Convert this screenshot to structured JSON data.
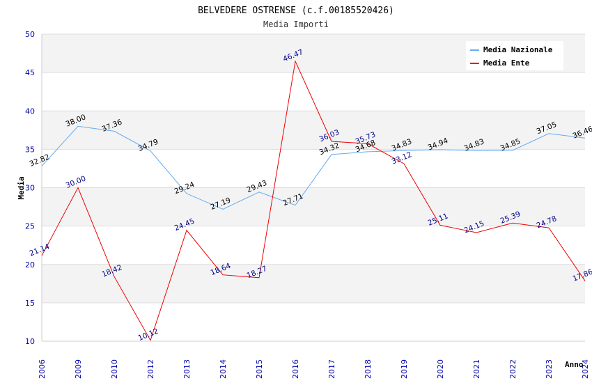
{
  "chart_data": {
    "type": "line",
    "title": "BELVEDERE OSTRENSE (c.f.00185520426)",
    "subtitle": "Media Importi",
    "xlabel": "Anno",
    "ylabel": "Media",
    "ylim": [
      10,
      50
    ],
    "yticks": [
      10,
      15,
      20,
      25,
      30,
      35,
      40,
      45,
      50
    ],
    "categories": [
      "2006",
      "2009",
      "2010",
      "2012",
      "2013",
      "2014",
      "2015",
      "2016",
      "2017",
      "2018",
      "2019",
      "2020",
      "2021",
      "2022",
      "2023",
      "2024"
    ],
    "series": [
      {
        "name": "Media Nazionale",
        "color": "#66aaee",
        "label_color": "#000000",
        "values": [
          32.82,
          38.0,
          37.36,
          34.79,
          29.24,
          27.19,
          29.43,
          27.71,
          34.32,
          34.68,
          34.83,
          34.94,
          34.83,
          34.85,
          37.05,
          36.46
        ],
        "labels": [
          "32.82",
          "38.00",
          "37.36",
          "34.79",
          "29.24",
          "27.19",
          "29.43",
          "27.71",
          "34.32",
          "34.68",
          "34.83",
          "34.94",
          "34.83",
          "34.85",
          "37.05",
          "36.46"
        ]
      },
      {
        "name": "Media Ente",
        "color": "#ee0000",
        "label_color": "#000088",
        "values": [
          21.14,
          30.0,
          18.42,
          10.12,
          24.45,
          18.64,
          18.27,
          46.47,
          36.03,
          35.73,
          33.12,
          25.11,
          24.15,
          25.39,
          24.78,
          17.86
        ],
        "labels": [
          "21.14",
          "30.00",
          "18.42",
          "10.12",
          "24.45",
          "18.64",
          "18.27",
          "46.47",
          "36.03",
          "35.73",
          "33.12",
          "25.11",
          "24.15",
          "25.39",
          "24.78",
          "17.86"
        ]
      }
    ],
    "legend_position": "top-right",
    "grid": true
  }
}
